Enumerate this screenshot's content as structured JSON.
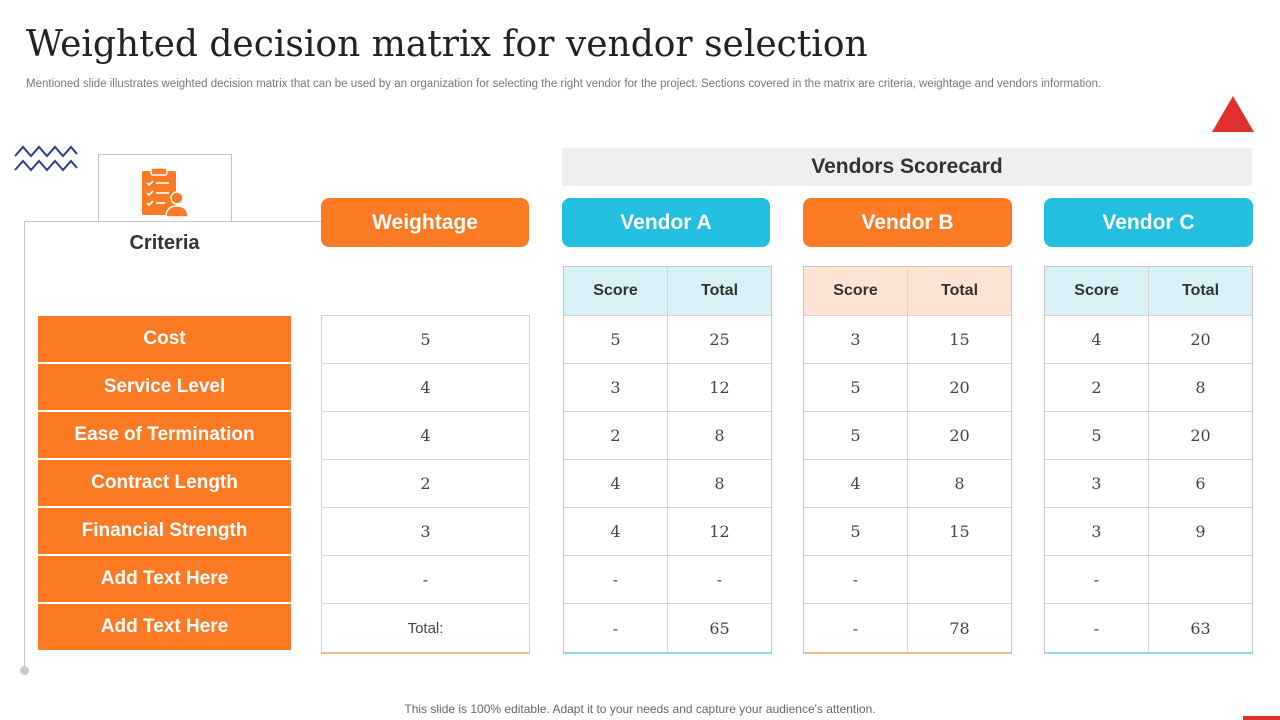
{
  "title": "Weighted decision matrix for vendor selection",
  "subtitle": "Mentioned slide illustrates weighted decision matrix that can be used by an organization for selecting the right vendor for the project. Sections covered in the matrix are criteria, weightage and vendors information.",
  "icons": {
    "decor_zigzag": "zigzag-icon",
    "criteria": "clipboard-checklist-icon",
    "corner": "triangle-icon"
  },
  "colors": {
    "orange": "#fd7a25",
    "cyan": "#22bfe0",
    "red": "#e03131",
    "peach": "#fde3d3",
    "light_cyan": "#d8f1f7"
  },
  "criteria": {
    "header": "Criteria",
    "items": [
      "Cost",
      "Service Level",
      "Ease of Termination",
      "Contract Length",
      "Financial Strength",
      "Add Text Here",
      "Add Text Here"
    ]
  },
  "scorecard_header": "Vendors Scorecard",
  "weightage": {
    "header": "Weightage",
    "values": [
      "5",
      "4",
      "4",
      "2",
      "3",
      "-",
      "Total:"
    ]
  },
  "vendors": [
    {
      "name": "Vendor A",
      "col_headers": [
        "Score",
        "Total"
      ],
      "rows": [
        [
          "5",
          "25"
        ],
        [
          "3",
          "12"
        ],
        [
          "2",
          "8"
        ],
        [
          "4",
          "8"
        ],
        [
          "4",
          "12"
        ],
        [
          "-",
          "-"
        ],
        [
          "-",
          "65"
        ]
      ]
    },
    {
      "name": "Vendor B",
      "col_headers": [
        "Score",
        "Total"
      ],
      "rows": [
        [
          "3",
          "15"
        ],
        [
          "5",
          "20"
        ],
        [
          "5",
          "20"
        ],
        [
          "4",
          "8"
        ],
        [
          "5",
          "15"
        ],
        [
          "-",
          ""
        ],
        [
          "-",
          "78"
        ]
      ]
    },
    {
      "name": "Vendor C",
      "col_headers": [
        "Score",
        "Total"
      ],
      "rows": [
        [
          "4",
          "20"
        ],
        [
          "2",
          "8"
        ],
        [
          "5",
          "20"
        ],
        [
          "3",
          "6"
        ],
        [
          "3",
          "9"
        ],
        [
          "-",
          ""
        ],
        [
          "-",
          "63"
        ]
      ]
    }
  ],
  "footer": "This slide is 100% editable. Adapt it to your needs and capture your audience's attention."
}
